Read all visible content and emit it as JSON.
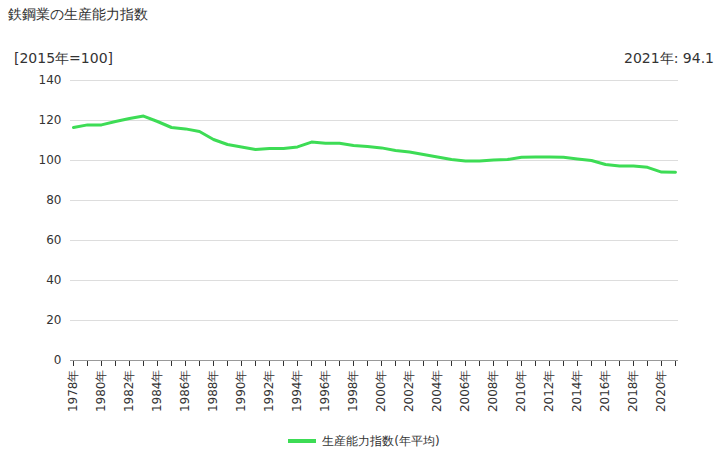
{
  "chart_data": {
    "type": "line",
    "title": "鉄鋼業の生産能力指数",
    "y_label": "[2015年=100]",
    "annotation": "2021年: 94.1",
    "categories": [
      "1978年",
      null,
      "1980年",
      null,
      "1982年",
      null,
      "1984年",
      null,
      "1986年",
      null,
      "1988年",
      null,
      "1990年",
      null,
      "1992年",
      null,
      "1994年",
      null,
      "1996年",
      null,
      "1998年",
      null,
      "2000年",
      null,
      "2002年",
      null,
      "2004年",
      null,
      "2006年",
      null,
      "2008年",
      null,
      "2010年",
      null,
      "2012年",
      null,
      "2014年",
      null,
      "2016年",
      null,
      "2018年",
      null,
      "2020年",
      null
    ],
    "series": [
      {
        "name": "生産能力指数(年平均)",
        "color": "#3ddc55",
        "values": [
          116.5,
          117.8,
          117.8,
          119.5,
          121,
          122.2,
          119.5,
          116.5,
          115.8,
          114.5,
          110.5,
          108,
          106.8,
          105.5,
          106,
          106,
          106.8,
          109.2,
          108.6,
          108.6,
          107.5,
          107,
          106.3,
          105,
          104.2,
          103,
          101.8,
          100.5,
          99.8,
          99.8,
          100.3,
          100.5,
          101.6,
          101.7,
          101.7,
          101.6,
          100.8,
          100,
          98,
          97.3,
          97.3,
          96.6,
          94.2,
          94.1
        ]
      }
    ],
    "ylim": [
      0,
      140
    ],
    "yticks": [
      0,
      20,
      40,
      60,
      80,
      100,
      120,
      140
    ],
    "grid": true,
    "legend": "bottom"
  }
}
